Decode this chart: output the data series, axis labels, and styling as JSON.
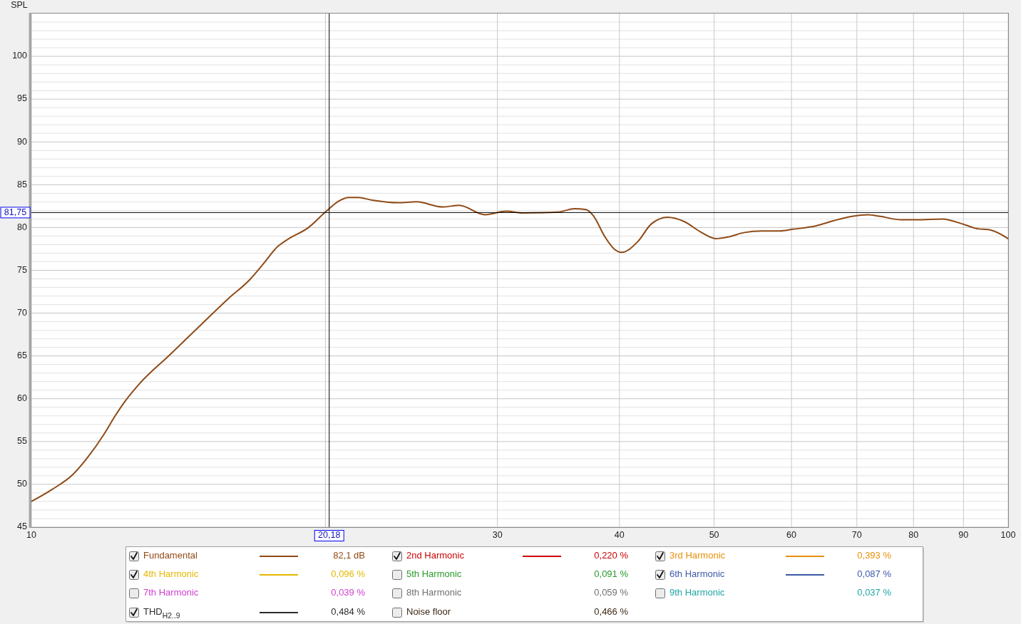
{
  "chart_data": [
    {
      "type": "line",
      "ylabel": "SPL",
      "x": [
        10,
        10.5,
        11.04,
        11.41,
        11.86,
        12.2,
        12.47,
        12.89,
        13.85,
        14.81,
        15.91,
        16.73,
        17.29,
        17.88,
        18.29,
        19.22,
        20.04,
        20.65,
        21.12,
        21.6,
        22.33,
        23.73,
        24.8,
        26.36,
        27.41,
        29.14,
        30.63,
        31.84,
        34.59,
        35.96,
        36.98,
        37.6,
        38.66,
        39.5,
        40.2,
        41.8,
        43.1,
        44.8,
        46.6,
        48.4,
        50.2,
        51.7,
        53.6,
        56,
        58.4,
        60.2,
        63.6,
        66.3,
        69.2,
        71.8,
        74,
        77.7,
        80.6,
        85.6,
        90.4,
        92.6,
        96,
        100
      ],
      "series": [
        {
          "name": "Fundamental",
          "color": "#8f4a16",
          "values": [
            48.0,
            49.4,
            51.2,
            53.1,
            55.8,
            58.1,
            59.7,
            61.7,
            65.1,
            68.3,
            71.7,
            73.9,
            75.8,
            77.8,
            78.6,
            80.0,
            81.9,
            83.1,
            83.5,
            83.5,
            83.2,
            82.9,
            83.0,
            82.4,
            82.6,
            81.5,
            81.9,
            81.7,
            81.8,
            82.2,
            82.1,
            81.4,
            78.9,
            77.5,
            77.1,
            78.4,
            80.4,
            81.2,
            80.7,
            79.5,
            78.7,
            78.9,
            79.4,
            79.6,
            79.6,
            79.8,
            80.2,
            80.8,
            81.3,
            81.5,
            81.3,
            80.9,
            80.9,
            81.0,
            80.3,
            79.9,
            79.7,
            78.7
          ]
        }
      ],
      "xlim": [
        10,
        100
      ],
      "ylim": [
        45,
        105
      ],
      "xticks": [
        10,
        {
          "value": 20,
          "label": null
        },
        30,
        40,
        50,
        60,
        70,
        80,
        90,
        100
      ],
      "yticks": [
        45,
        {
          "value": 46,
          "label": null
        },
        {
          "value": 47,
          "label": null
        },
        {
          "value": 48,
          "label": null
        },
        {
          "value": 49,
          "label": null
        },
        50,
        {
          "value": 51,
          "label": null
        },
        {
          "value": 52,
          "label": null
        },
        {
          "value": 53,
          "label": null
        },
        {
          "value": 54,
          "label": null
        },
        55,
        {
          "value": 56,
          "label": null
        },
        {
          "value": 57,
          "label": null
        },
        {
          "value": 58,
          "label": null
        },
        {
          "value": 59,
          "label": null
        },
        60,
        {
          "value": 61,
          "label": null
        },
        {
          "value": 62,
          "label": null
        },
        {
          "value": 63,
          "label": null
        },
        {
          "value": 64,
          "label": null
        },
        65,
        {
          "value": 66,
          "label": null
        },
        {
          "value": 67,
          "label": null
        },
        {
          "value": 68,
          "label": null
        },
        {
          "value": 69,
          "label": null
        },
        70,
        {
          "value": 71,
          "label": null
        },
        {
          "value": 72,
          "label": null
        },
        {
          "value": 73,
          "label": null
        },
        {
          "value": 74,
          "label": null
        },
        75,
        {
          "value": 76,
          "label": null
        },
        {
          "value": 77,
          "label": null
        },
        {
          "value": 78,
          "label": null
        },
        {
          "value": 79,
          "label": null
        },
        80,
        {
          "value": 81,
          "label": null
        },
        {
          "value": 82,
          "label": null
        },
        {
          "value": 83,
          "label": null
        },
        {
          "value": 84,
          "label": null
        },
        85,
        {
          "value": 86,
          "label": null
        },
        {
          "value": 87,
          "label": null
        },
        {
          "value": 88,
          "label": null
        },
        {
          "value": 89,
          "label": null
        },
        90,
        {
          "value": 91,
          "label": null
        },
        {
          "value": 92,
          "label": null
        },
        {
          "value": 93,
          "label": null
        },
        {
          "value": 94,
          "label": null
        },
        95,
        {
          "value": 96,
          "label": null
        },
        {
          "value": 97,
          "label": null
        },
        {
          "value": 98,
          "label": null
        },
        {
          "value": 99,
          "label": null
        },
        100,
        {
          "value": 101,
          "label": null
        },
        {
          "value": 102,
          "label": null
        },
        {
          "value": 103,
          "label": null
        },
        {
          "value": 104,
          "label": null
        }
      ],
      "log": "x",
      "grid": true,
      "legend": "bottom",
      "ref_lines": [
        {
          "axis": "x",
          "value": 20.18,
          "label": "20,18",
          "color": "#000000"
        },
        {
          "axis": "y",
          "value": 81.75,
          "label": "81,75",
          "color": "#000000"
        }
      ],
      "annotations": [
        "82,1 dB"
      ]
    },
    {
      "type": "other",
      "categories": [
        "2nd Harmonic",
        "3rd Harmonic",
        "4th Harmonic",
        "5th Harmonic",
        "6th Harmonic",
        "7th Harmonic",
        "8th Harmonic",
        "9th Harmonic",
        "THD$_{H2..9}$",
        "Noise floor"
      ],
      "value_labels": [
        "0,220 %",
        "0,393 %",
        "0,096 %",
        "0,091 %",
        "0,087 %",
        "0,039 %",
        "0,059 %",
        "0,037 %",
        "0,484 %",
        "0,466 %"
      ],
      "colors": [
        "#cc0000",
        "#e8900a",
        "#e6b800",
        "#2a9a2a",
        "#3a5aa8",
        "#d040d0",
        "#707070",
        "#20a5a5",
        "#2b2b2b",
        "#3c2814"
      ]
    }
  ]
}
